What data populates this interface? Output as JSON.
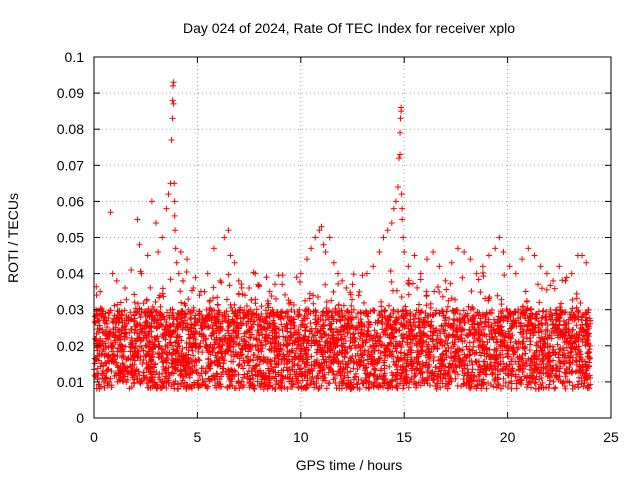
{
  "chart_data": {
    "type": "scatter",
    "title": "Day 024 of 2024, Rate Of TEC Index for receiver xplo",
    "xlabel": "GPS time / hours",
    "ylabel": "ROTI / TECUs",
    "xlim": [
      0,
      25
    ],
    "ylim": [
      0,
      0.1
    ],
    "xticks": [
      0,
      5,
      10,
      15,
      20,
      25
    ],
    "xtick_labels": [
      "0",
      "5",
      "10",
      "15",
      "20",
      "25"
    ],
    "yticks": [
      0,
      0.01,
      0.02,
      0.03,
      0.04,
      0.05,
      0.06,
      0.07,
      0.08,
      0.09,
      0.1
    ],
    "ytick_labels": [
      "0",
      "0.01",
      "0.02",
      "0.03",
      "0.04",
      "0.05",
      "0.06",
      "0.07",
      "0.08",
      "0.09",
      "0.1"
    ],
    "grid": true,
    "marker": "+",
    "color": "#ff0000",
    "series": [
      {
        "name": "ROTI",
        "description_points": "dense band of ~0.008-0.03 TECU/min across 0-24 h, peaks listed below",
        "x": [
          0.1,
          0.3,
          0.5,
          0.8,
          0.9,
          1.1,
          1.3,
          1.5,
          1.8,
          2.1,
          2.2,
          2.3,
          2.6,
          2.8,
          3.0,
          3.1,
          3.3,
          3.5,
          3.6,
          3.7,
          3.75,
          3.8,
          3.8,
          3.82,
          3.85,
          3.85,
          3.88,
          3.9,
          3.9,
          3.92,
          3.95,
          4.0,
          4.1,
          4.2,
          4.3,
          4.5,
          4.8,
          5.1,
          5.5,
          5.8,
          6.1,
          6.3,
          6.5,
          6.6,
          6.8,
          7.0,
          7.3,
          7.5,
          7.8,
          8.1,
          8.5,
          8.8,
          9.1,
          9.5,
          9.8,
          10.0,
          10.3,
          10.5,
          10.7,
          10.9,
          11.0,
          11.1,
          11.2,
          11.4,
          11.6,
          11.8,
          12.0,
          12.2,
          12.5,
          12.8,
          13.2,
          13.5,
          13.8,
          14.0,
          14.2,
          14.4,
          14.5,
          14.6,
          14.7,
          14.75,
          14.8,
          14.8,
          14.82,
          14.85,
          14.85,
          14.88,
          14.9,
          14.9,
          14.95,
          15.0,
          15.2,
          15.5,
          15.8,
          16.1,
          16.4,
          16.7,
          17.0,
          17.3,
          17.6,
          17.9,
          18.2,
          18.5,
          18.8,
          19.1,
          19.4,
          19.6,
          19.8,
          20.1,
          20.4,
          20.7,
          21.0,
          21.3,
          21.6,
          21.9,
          22.2,
          22.5,
          22.8,
          23.1,
          23.4,
          23.6,
          23.8,
          23.9
        ],
        "y": [
          0.03,
          0.035,
          0.028,
          0.057,
          0.04,
          0.038,
          0.032,
          0.036,
          0.041,
          0.055,
          0.048,
          0.04,
          0.045,
          0.06,
          0.054,
          0.046,
          0.05,
          0.058,
          0.062,
          0.065,
          0.077,
          0.083,
          0.088,
          0.092,
          0.087,
          0.093,
          0.065,
          0.06,
          0.056,
          0.052,
          0.047,
          0.043,
          0.04,
          0.046,
          0.038,
          0.044,
          0.036,
          0.034,
          0.04,
          0.047,
          0.038,
          0.05,
          0.052,
          0.045,
          0.043,
          0.038,
          0.034,
          0.036,
          0.04,
          0.031,
          0.035,
          0.033,
          0.037,
          0.032,
          0.039,
          0.04,
          0.044,
          0.047,
          0.05,
          0.052,
          0.053,
          0.048,
          0.046,
          0.05,
          0.043,
          0.04,
          0.038,
          0.036,
          0.037,
          0.034,
          0.04,
          0.042,
          0.046,
          0.05,
          0.052,
          0.054,
          0.058,
          0.06,
          0.064,
          0.072,
          0.073,
          0.079,
          0.083,
          0.085,
          0.086,
          0.062,
          0.058,
          0.055,
          0.05,
          0.046,
          0.042,
          0.045,
          0.04,
          0.044,
          0.046,
          0.042,
          0.038,
          0.043,
          0.047,
          0.046,
          0.044,
          0.04,
          0.042,
          0.045,
          0.047,
          0.05,
          0.046,
          0.042,
          0.04,
          0.044,
          0.047,
          0.045,
          0.042,
          0.04,
          0.038,
          0.042,
          0.038,
          0.04,
          0.045,
          0.045,
          0.043,
          0.03
        ]
      }
    ]
  }
}
